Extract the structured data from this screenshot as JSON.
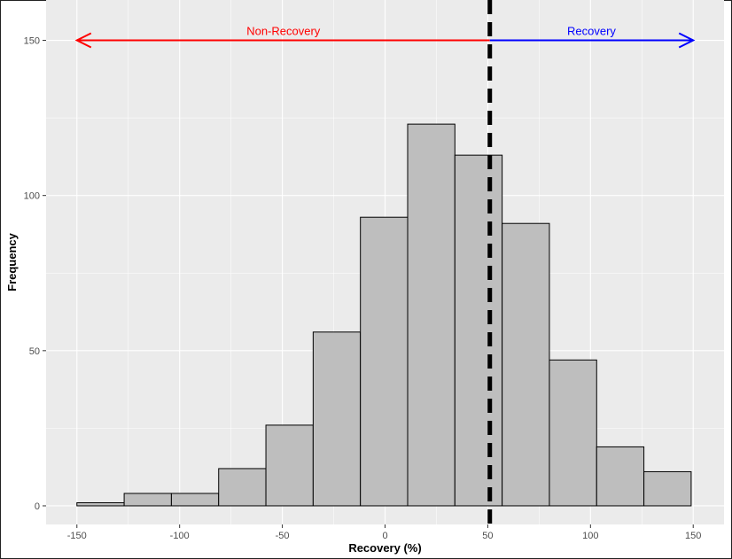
{
  "chart_data": {
    "type": "bar",
    "xlabel": "Recovery (%)",
    "ylabel": "Frequency",
    "xlim": [
      -165,
      165
    ],
    "ylim": [
      -6,
      163
    ],
    "x_ticks": [
      -150,
      -100,
      -50,
      0,
      50,
      100,
      150
    ],
    "y_ticks": [
      0,
      50,
      100,
      150
    ],
    "grid": true,
    "bins": [
      {
        "x0": -150,
        "x1": -127,
        "count": 1
      },
      {
        "x0": -127,
        "x1": -104,
        "count": 4
      },
      {
        "x0": -104,
        "x1": -81,
        "count": 4
      },
      {
        "x0": -81,
        "x1": -58,
        "count": 12
      },
      {
        "x0": -58,
        "x1": -35,
        "count": 26
      },
      {
        "x0": -35,
        "x1": -12,
        "count": 56
      },
      {
        "x0": -12,
        "x1": 11,
        "count": 93
      },
      {
        "x0": 11,
        "x1": 34,
        "count": 123
      },
      {
        "x0": 34,
        "x1": 57,
        "count": 113
      },
      {
        "x0": 57,
        "x1": 80,
        "count": 91
      },
      {
        "x0": 80,
        "x1": 103,
        "count": 47
      },
      {
        "x0": 103,
        "x1": 126,
        "count": 19
      },
      {
        "x0": 126,
        "x1": 149,
        "count": 11
      }
    ],
    "threshold": {
      "x": 51,
      "style": "dashed"
    },
    "annotations": [
      {
        "label": "Non-Recovery",
        "from": 51,
        "to": -150,
        "y": 150,
        "color": "#ff0000"
      },
      {
        "label": "Recovery",
        "from": 51,
        "to": 150,
        "y": 150,
        "color": "#0000ff"
      }
    ],
    "colors": {
      "panel": "#ebebeb",
      "bar_fill": "#bebebe",
      "bar_stroke": "#000000",
      "grid_major": "#ffffff",
      "axis_text": "#4d4d4d"
    }
  }
}
